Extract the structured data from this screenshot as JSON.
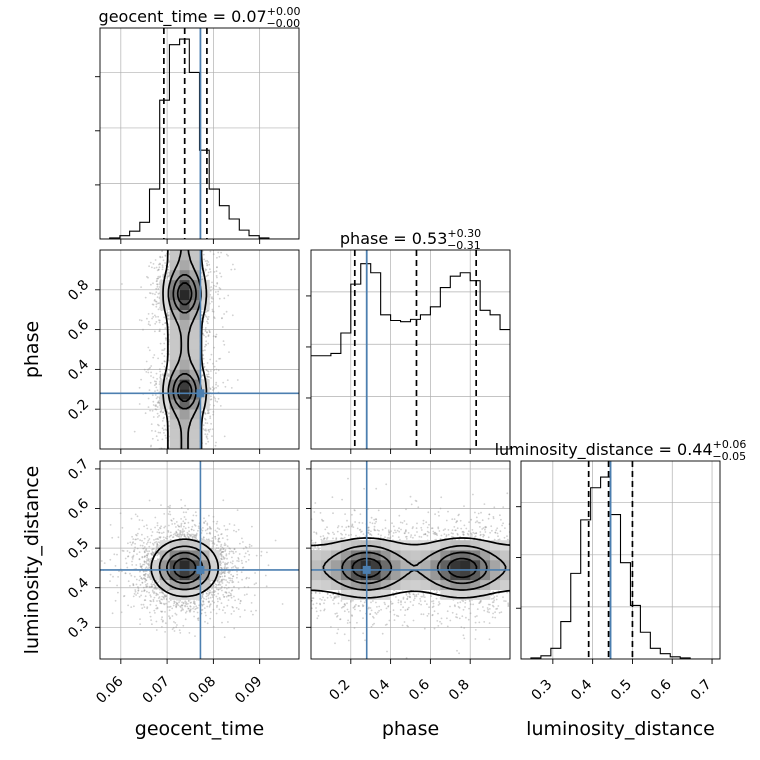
{
  "chart_data": {
    "type": "corner",
    "colors": {
      "truth": "#4c7fb0",
      "hist": "#000000",
      "quantile": "#000000",
      "density": "#555555",
      "grid": "#b0b0b0"
    },
    "grid": true,
    "parameters": [
      {
        "name": "geocent_time",
        "xlabel": "geocent_time",
        "range": [
          0.0555,
          0.0985
        ],
        "ticks": [
          0.06,
          0.07,
          0.08,
          0.09
        ],
        "tick_labels": [
          "0.06",
          "0.07",
          "0.08",
          "0.09"
        ],
        "truth": 0.0772,
        "quantiles": [
          0.0693,
          0.0738,
          0.0786
        ],
        "title": {
          "main": "geocent_time = 0.07",
          "sup": "+0.00",
          "sub": "−0.00"
        }
      },
      {
        "name": "phase",
        "xlabel": "phase",
        "ylabel": "phase",
        "range": [
          0.0,
          1.0
        ],
        "ticks": [
          0.2,
          0.4,
          0.6,
          0.8
        ],
        "tick_labels": [
          "0.2",
          "0.4",
          "0.6",
          "0.8"
        ],
        "truth": 0.28,
        "quantiles": [
          0.22,
          0.53,
          0.83
        ],
        "title": {
          "main": "phase = 0.53",
          "sup": "+0.30",
          "sub": "−0.31"
        }
      },
      {
        "name": "luminosity_distance",
        "xlabel": "luminosity_distance",
        "ylabel": "luminosity_distance",
        "range": [
          0.22,
          0.72
        ],
        "ticks": [
          0.3,
          0.4,
          0.5,
          0.6,
          0.7
        ],
        "tick_labels": [
          "0.3",
          "0.4",
          "0.5",
          "0.6",
          "0.7"
        ],
        "truth": 0.445,
        "quantiles": [
          0.39,
          0.44,
          0.5
        ],
        "title": {
          "main": "luminosity_distance = 0.44",
          "sup": "+0.06",
          "sub": "−0.05"
        }
      }
    ],
    "histograms": [
      {
        "param": "geocent_time",
        "bin_edges": [
          0.0555,
          0.0576,
          0.0598,
          0.0619,
          0.0641,
          0.0662,
          0.0684,
          0.0705,
          0.0727,
          0.0748,
          0.077,
          0.0791,
          0.0813,
          0.0834,
          0.0856,
          0.0877,
          0.0899,
          0.092,
          0.0942,
          0.0963,
          0.0985
        ],
        "counts": [
          0,
          1,
          3,
          7,
          15,
          45,
          125,
          175,
          180,
          150,
          80,
          45,
          30,
          18,
          8,
          3,
          1,
          0,
          0,
          0
        ],
        "ylim": [
          0,
          190
        ]
      },
      {
        "param": "phase",
        "bin_edges": [
          0.0,
          0.05,
          0.1,
          0.15,
          0.2,
          0.25,
          0.3,
          0.35,
          0.4,
          0.45,
          0.5,
          0.55,
          0.6,
          0.65,
          0.7,
          0.75,
          0.8,
          0.85,
          0.9,
          0.95,
          1.0
        ],
        "counts": [
          82,
          82,
          84,
          102,
          145,
          163,
          155,
          118,
          113,
          112,
          114,
          118,
          125,
          142,
          152,
          155,
          148,
          122,
          118,
          105
        ],
        "ylim": [
          0,
          175
        ]
      },
      {
        "param": "luminosity_distance",
        "bin_edges": [
          0.22,
          0.245,
          0.27,
          0.295,
          0.32,
          0.345,
          0.37,
          0.395,
          0.42,
          0.445,
          0.47,
          0.495,
          0.52,
          0.545,
          0.57,
          0.595,
          0.62,
          0.645,
          0.67,
          0.695,
          0.72
        ],
        "counts": [
          0,
          1,
          3,
          10,
          35,
          80,
          130,
          160,
          170,
          135,
          90,
          50,
          25,
          10,
          5,
          2,
          1,
          0,
          0,
          0
        ],
        "ylim": [
          0,
          185
        ]
      }
    ],
    "density_panels": [
      {
        "x": "geocent_time",
        "y": "phase",
        "modes": [
          {
            "x": 0.0738,
            "y": 0.78,
            "sx": 0.0021,
            "sy": 0.065
          },
          {
            "x": 0.0738,
            "y": 0.29,
            "sx": 0.0021,
            "sy": 0.06
          }
        ],
        "band_sx": 0.0026
      },
      {
        "x": "geocent_time",
        "y": "luminosity_distance",
        "modes": [
          {
            "x": 0.0738,
            "y": 0.45,
            "sx": 0.0035,
            "sy": 0.035
          }
        ]
      },
      {
        "x": "phase",
        "y": "luminosity_distance",
        "modes": [
          {
            "x": 0.28,
            "y": 0.45,
            "sx": 0.09,
            "sy": 0.033
          },
          {
            "x": 0.76,
            "y": 0.45,
            "sx": 0.09,
            "sy": 0.033
          }
        ],
        "band_sy": 0.045
      }
    ]
  }
}
